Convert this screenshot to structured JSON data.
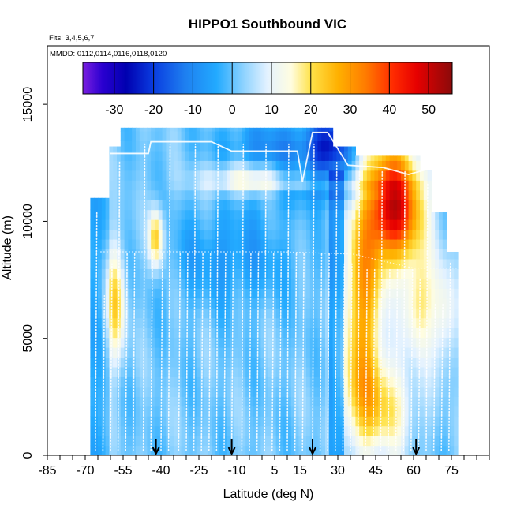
{
  "chart_data": {
    "type": "heatmap",
    "title": "HIPPO1 Southbound VIC",
    "flights_label": "Flts: 3,4,5,6,7",
    "dates_label": "MMDD: 0112,0114,0116,0118,0120",
    "xlabel": "Latitude (deg N)",
    "ylabel": "Altitude (m)",
    "xlim": [
      -85,
      90
    ],
    "ylim": [
      0,
      17500
    ],
    "x_ticks": [
      -85,
      -70,
      -55,
      -40,
      -25,
      -10,
      5,
      15,
      30,
      45,
      60,
      75
    ],
    "x_tick_labels": [
      "-85",
      "-70",
      "-55",
      "-40",
      "-25",
      "-10",
      "5",
      "15",
      "30",
      "45",
      "60",
      "75"
    ],
    "y_ticks": [
      0,
      5000,
      10000,
      15000
    ],
    "y_tick_labels": [
      "0",
      "5000",
      "10000",
      "15000"
    ],
    "colorbar": {
      "range": [
        -38,
        56
      ],
      "ticks": [
        -30,
        -20,
        -10,
        0,
        10,
        20,
        30,
        40,
        50
      ],
      "tick_labels": [
        "-30",
        "-20",
        "-10",
        "0",
        "10",
        "20",
        "30",
        "40",
        "50"
      ],
      "stops": [
        {
          "v": -38,
          "c": "#7a1fe0"
        },
        {
          "v": -33,
          "c": "#2a00d0"
        },
        {
          "v": -27,
          "c": "#0000b0"
        },
        {
          "v": -20,
          "c": "#0a3de0"
        },
        {
          "v": -12,
          "c": "#1e7ff0"
        },
        {
          "v": -4,
          "c": "#22aaff"
        },
        {
          "v": 3,
          "c": "#8fd3ff"
        },
        {
          "v": 9,
          "c": "#e4f2ff"
        },
        {
          "v": 15,
          "c": "#fffde0"
        },
        {
          "v": 20,
          "c": "#ffe24a"
        },
        {
          "v": 27,
          "c": "#ffb000"
        },
        {
          "v": 34,
          "c": "#ff7b00"
        },
        {
          "v": 41,
          "c": "#ff2a00"
        },
        {
          "v": 47,
          "c": "#e60000"
        },
        {
          "v": 56,
          "c": "#8b0a0a"
        }
      ]
    },
    "arrow_latitudes": [
      -42,
      -12,
      20,
      61
    ],
    "data_extent": {
      "lat_min": -68,
      "lat_max": 77,
      "alt_min": 0,
      "alt_max": 14000
    },
    "features": [
      {
        "lat": -58,
        "alt": 6500,
        "value": 22,
        "description": "warm anomaly"
      },
      {
        "lat": -42,
        "alt": 9300,
        "value": 25,
        "description": "warm anomaly"
      },
      {
        "lat": 22,
        "alt": 13000,
        "value": -32,
        "description": "cold anomaly"
      },
      {
        "lat": 50,
        "alt": 10500,
        "value": 45,
        "description": "warm maximum"
      },
      {
        "lat": 38,
        "alt": 4000,
        "value": 30,
        "description": "warm anomaly"
      }
    ]
  }
}
